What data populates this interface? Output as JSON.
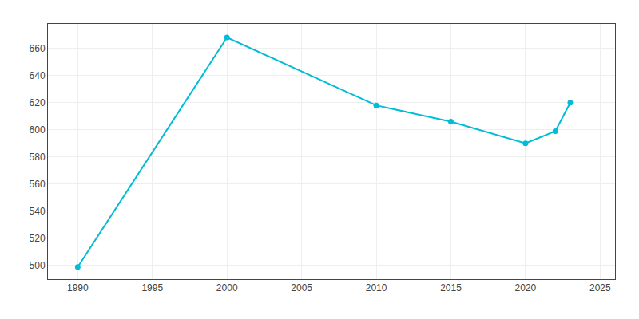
{
  "chart_data": {
    "type": "line",
    "x": [
      1990,
      2000,
      2010,
      2015,
      2020,
      2022,
      2023
    ],
    "values": [
      499,
      668,
      618,
      606,
      590,
      599,
      620
    ],
    "color": "#00bcd4",
    "marker": "circle",
    "xlim": [
      1988,
      2026
    ],
    "ylim": [
      490,
      678
    ],
    "xticks": [
      1990,
      1995,
      2000,
      2005,
      2010,
      2015,
      2020,
      2025
    ],
    "yticks": [
      500,
      520,
      540,
      560,
      580,
      600,
      620,
      640,
      660
    ],
    "grid": true
  }
}
